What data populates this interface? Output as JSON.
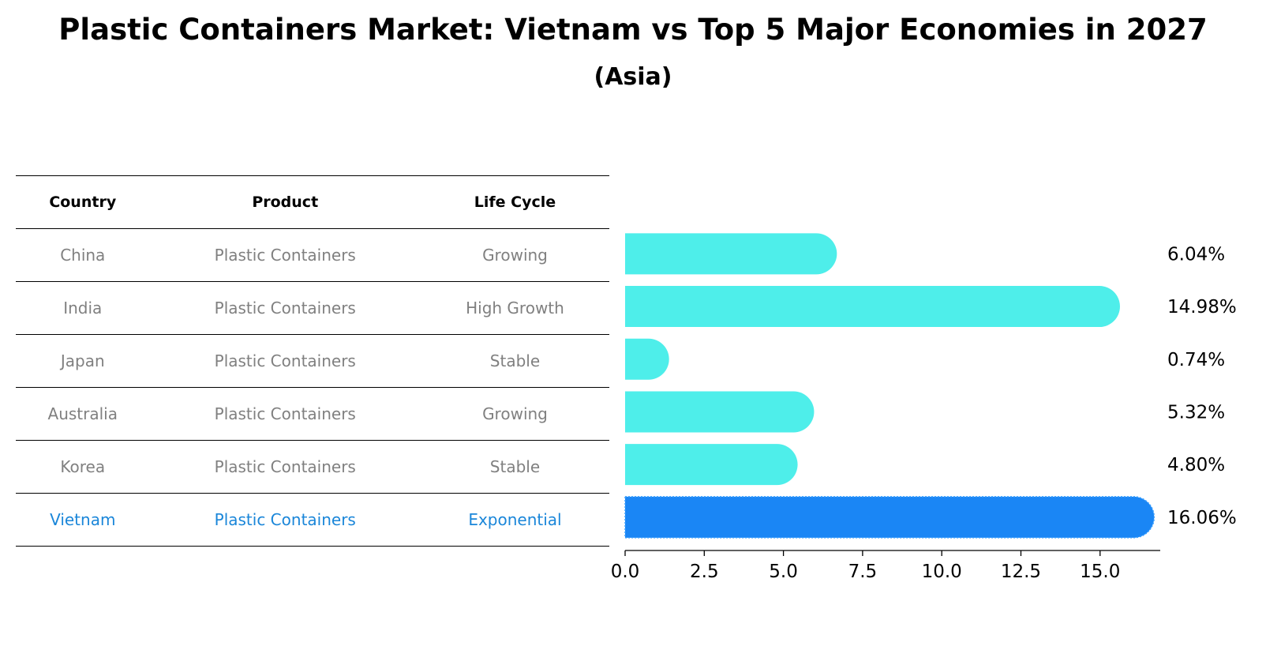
{
  "title": "Plastic Containers Market: Vietnam vs Top 5 Major Economies in 2027",
  "subtitle": "(Asia)",
  "table": {
    "headers": [
      "Country",
      "Product",
      "Life Cycle"
    ],
    "rows": [
      [
        "China",
        "Plastic Containers",
        "Growing"
      ],
      [
        "India",
        "Plastic Containers",
        "High Growth"
      ],
      [
        "Japan",
        "Plastic Containers",
        "Stable"
      ],
      [
        "Australia",
        "Plastic Containers",
        "Growing"
      ],
      [
        "Korea",
        "Plastic Containers",
        "Stable"
      ],
      [
        "Vietnam",
        "Plastic Containers",
        "Exponential"
      ]
    ],
    "highlight_row": 5
  },
  "colors": {
    "bar": "#4eeeea",
    "highlight_bar": "#1a86f5",
    "muted_text": "#808080",
    "highlight_text": "#1a86d9"
  },
  "chart_data": {
    "type": "bar",
    "orientation": "horizontal",
    "categories": [
      "China",
      "India",
      "Japan",
      "Australia",
      "Korea",
      "Vietnam"
    ],
    "values": [
      6.04,
      14.98,
      0.74,
      5.32,
      4.8,
      16.06
    ],
    "value_labels": [
      "6.04%",
      "14.98%",
      "0.74%",
      "5.32%",
      "4.80%",
      "16.06%"
    ],
    "xlim": [
      0,
      16.9
    ],
    "xticks": [
      "0.0",
      "2.5",
      "5.0",
      "7.5",
      "10.0",
      "12.5",
      "15.0"
    ],
    "highlight_index": 5,
    "grid": false
  }
}
